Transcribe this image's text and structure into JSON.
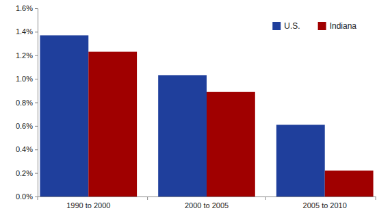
{
  "chart_data": {
    "type": "bar",
    "categories": [
      "1990 to 2000",
      "2000 to 2005",
      "2005 to 2010"
    ],
    "series": [
      {
        "name": "U.S.",
        "color": "#1f3f9c",
        "values": [
          1.37,
          1.03,
          0.61
        ]
      },
      {
        "name": "Indiana",
        "color": "#a00000",
        "values": [
          1.23,
          0.89,
          0.22
        ]
      }
    ],
    "ylim": [
      0,
      1.6
    ],
    "yticks": [
      {
        "value": 0,
        "label": "0.0%"
      },
      {
        "value": 0.2,
        "label": "0.2%"
      },
      {
        "value": 0.4,
        "label": "0.4%"
      },
      {
        "value": 0.6,
        "label": "0.6%"
      },
      {
        "value": 0.8,
        "label": "0.8%"
      },
      {
        "value": 1.0,
        "label": "1.0%"
      },
      {
        "value": 1.2,
        "label": "1.2%"
      },
      {
        "value": 1.4,
        "label": "1.4%"
      },
      {
        "value": 1.6,
        "label": "1.6%"
      }
    ],
    "grid": false,
    "legend": "upper right"
  }
}
